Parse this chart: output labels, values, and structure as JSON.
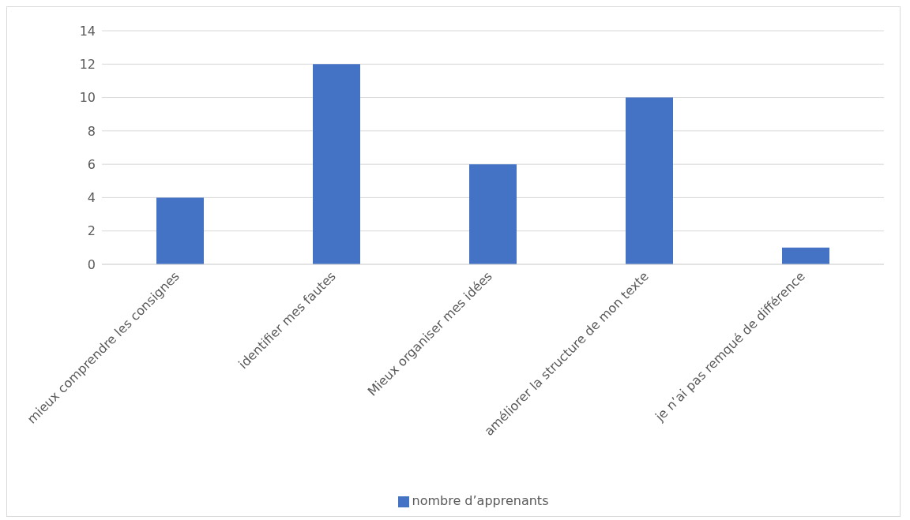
{
  "chart_data": {
    "type": "bar",
    "categories": [
      "mieux comprendre les consignes",
      "identifier mes fautes",
      "Mieux organiser mes idées",
      "améliorer la structure de mon texte",
      "je n’ai pas remqué de différence"
    ],
    "series": [
      {
        "name": "nombre d’apprenants",
        "color": "#4472c4",
        "values": [
          4,
          12,
          6,
          10,
          1
        ]
      }
    ],
    "ylim": [
      0,
      14
    ],
    "yticks": [
      0,
      2,
      4,
      6,
      8,
      10,
      12,
      14
    ],
    "grid": "y",
    "legend": "bottom"
  }
}
